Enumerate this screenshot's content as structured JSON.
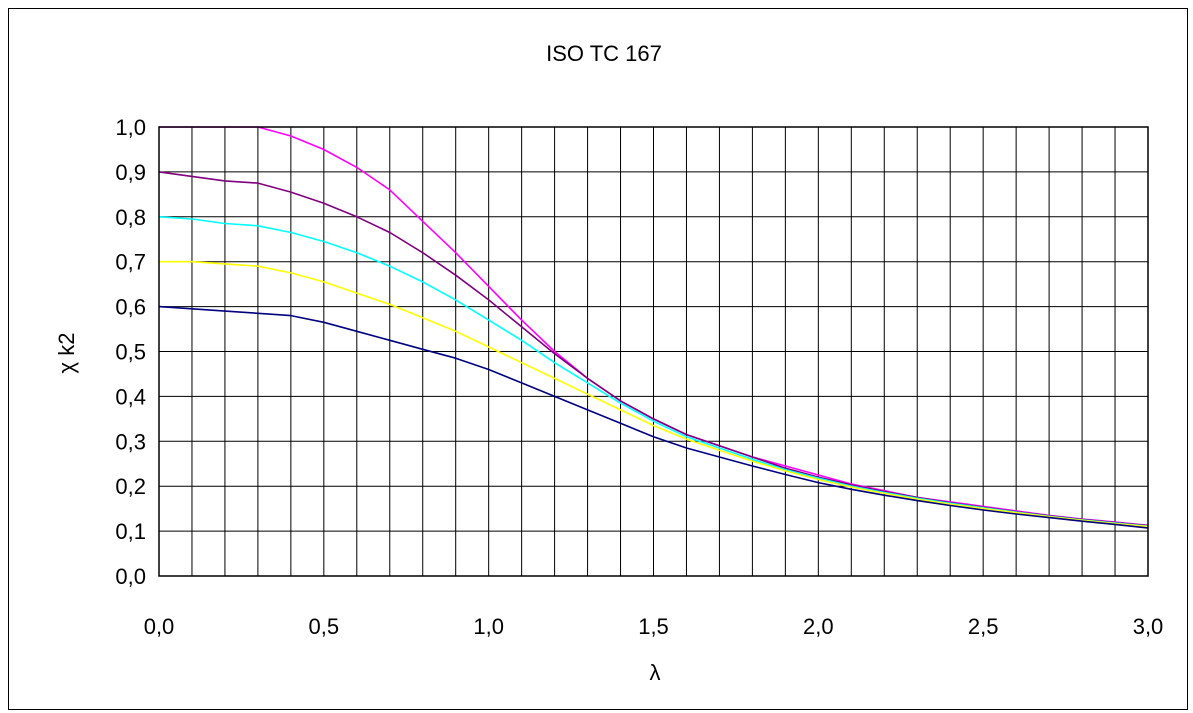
{
  "chart_data": {
    "type": "line",
    "title": "ISO TC 167",
    "xlabel": "λ",
    "ylabel": "χ k2",
    "xlim": [
      0,
      3
    ],
    "ylim": [
      0,
      1
    ],
    "x_ticks": [
      "0,0",
      "0,5",
      "1,0",
      "1,5",
      "2,0",
      "2,5",
      "3,0"
    ],
    "y_ticks": [
      "0,0",
      "0,1",
      "0,2",
      "0,3",
      "0,4",
      "0,5",
      "0,6",
      "0,7",
      "0,8",
      "0,9",
      "1,0"
    ],
    "grid": true,
    "legend": "none",
    "x": [
      0,
      0.1,
      0.2,
      0.3,
      0.4,
      0.5,
      0.6,
      0.7,
      0.8,
      0.9,
      1.0,
      1.1,
      1.2,
      1.3,
      1.4,
      1.5,
      1.6,
      1.7,
      1.8,
      1.9,
      2.0,
      2.1,
      2.2,
      2.3,
      2.4,
      2.5,
      2.6,
      2.7,
      2.8,
      2.9,
      3.0
    ],
    "series": [
      {
        "color": "#ff00ff",
        "values": [
          1.0,
          1.0,
          1.0,
          1.0,
          0.98,
          0.95,
          0.91,
          0.86,
          0.79,
          0.72,
          0.645,
          0.57,
          0.5,
          0.44,
          0.39,
          0.35,
          0.315,
          0.29,
          0.265,
          0.245,
          0.225,
          0.205,
          0.19,
          0.175,
          0.165,
          0.155,
          0.145,
          0.135,
          0.127,
          0.12,
          0.113
        ]
      },
      {
        "color": "#800080",
        "values": [
          0.9,
          0.89,
          0.88,
          0.875,
          0.855,
          0.83,
          0.8,
          0.765,
          0.72,
          0.67,
          0.615,
          0.555,
          0.495,
          0.44,
          0.39,
          0.35,
          0.315,
          0.29,
          0.265,
          0.24,
          0.22,
          0.203,
          0.188,
          0.175,
          0.163,
          0.153,
          0.143,
          0.134,
          0.126,
          0.119,
          0.112
        ]
      },
      {
        "color": "#00ffff",
        "values": [
          0.8,
          0.795,
          0.785,
          0.78,
          0.765,
          0.745,
          0.72,
          0.69,
          0.655,
          0.615,
          0.57,
          0.525,
          0.475,
          0.43,
          0.385,
          0.345,
          0.31,
          0.285,
          0.26,
          0.237,
          0.218,
          0.2,
          0.186,
          0.173,
          0.162,
          0.152,
          0.142,
          0.133,
          0.125,
          0.118,
          0.111
        ]
      },
      {
        "color": "#ffff00",
        "values": [
          0.7,
          0.7,
          0.695,
          0.69,
          0.675,
          0.655,
          0.63,
          0.605,
          0.575,
          0.545,
          0.51,
          0.475,
          0.44,
          0.405,
          0.37,
          0.335,
          0.305,
          0.28,
          0.256,
          0.234,
          0.215,
          0.198,
          0.184,
          0.171,
          0.16,
          0.15,
          0.141,
          0.132,
          0.124,
          0.117,
          0.11
        ]
      },
      {
        "color": "#000080",
        "values": [
          0.6,
          0.595,
          0.59,
          0.585,
          0.58,
          0.565,
          0.545,
          0.525,
          0.505,
          0.485,
          0.46,
          0.43,
          0.4,
          0.37,
          0.34,
          0.31,
          0.285,
          0.265,
          0.245,
          0.226,
          0.208,
          0.193,
          0.18,
          0.168,
          0.157,
          0.147,
          0.138,
          0.13,
          0.122,
          0.115,
          0.107
        ]
      }
    ]
  }
}
